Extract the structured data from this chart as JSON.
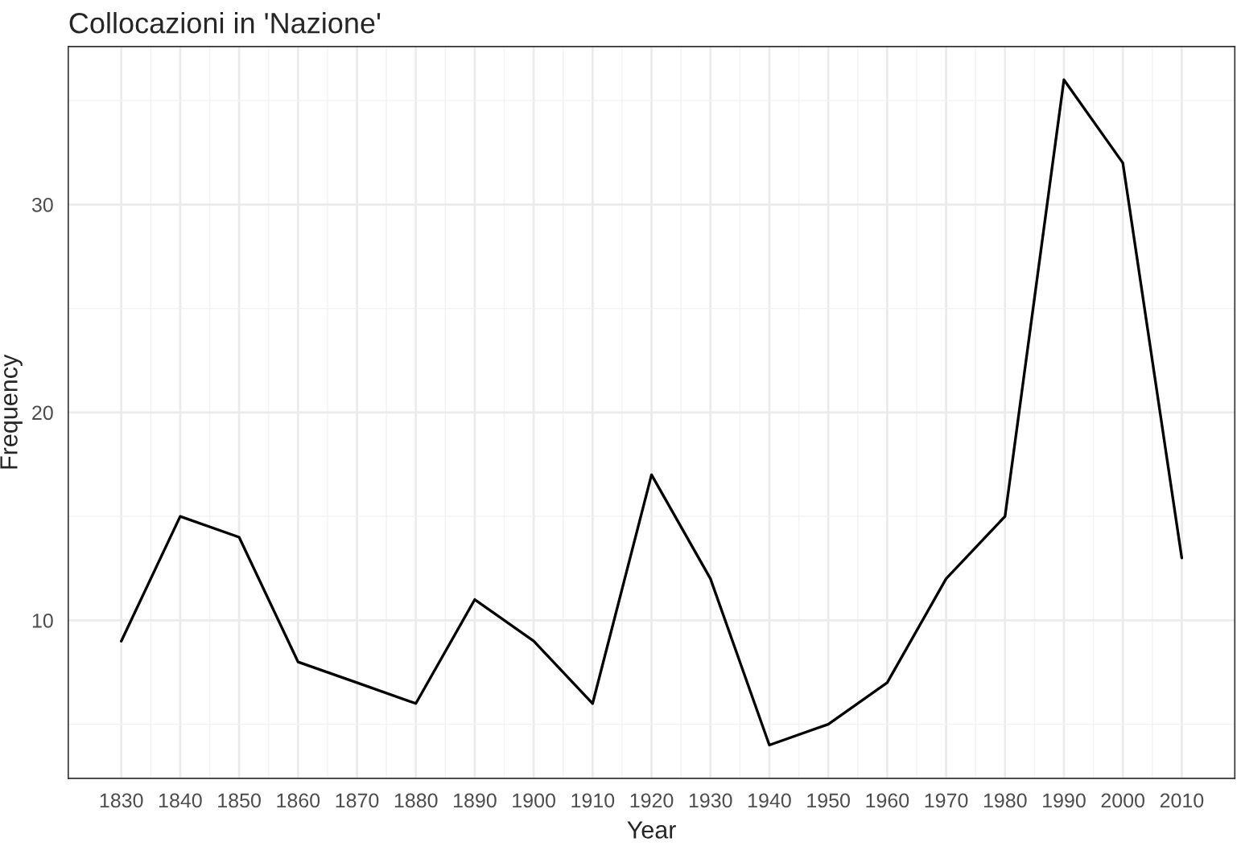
{
  "chart_data": {
    "type": "line",
    "title": "Collocazioni in 'Nazione'",
    "xlabel": "Year",
    "ylabel": "Frequency",
    "x": [
      1830,
      1840,
      1850,
      1860,
      1870,
      1880,
      1890,
      1900,
      1910,
      1920,
      1930,
      1940,
      1950,
      1960,
      1970,
      1980,
      1990,
      2000,
      2010
    ],
    "series": [
      {
        "color": "#000000",
        "values": [
          9,
          15,
          14,
          8,
          7,
          6,
          11,
          9,
          6,
          17,
          12,
          4,
          5,
          7,
          12,
          15,
          36,
          32,
          13
        ]
      }
    ],
    "xlim": [
      1821,
      2019
    ],
    "ylim": [
      2.4,
      37.6
    ],
    "xticks": [
      1830,
      1840,
      1850,
      1860,
      1870,
      1880,
      1890,
      1900,
      1910,
      1920,
      1930,
      1940,
      1950,
      1960,
      1970,
      1980,
      1990,
      2000,
      2010
    ],
    "yticks": [
      10,
      20,
      30
    ],
    "grid": true,
    "marker": "none",
    "line_style": "solid"
  }
}
